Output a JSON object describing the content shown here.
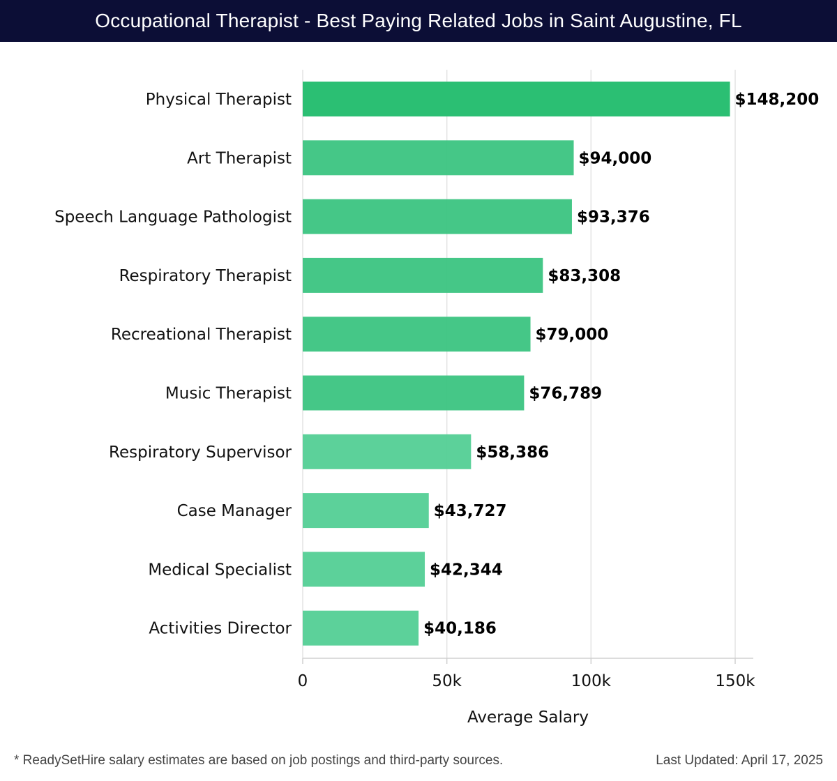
{
  "header": {
    "title": "Occupational Therapist - Best Paying Related Jobs in Saint Augustine, FL"
  },
  "chart_data": {
    "type": "bar",
    "orientation": "horizontal",
    "title": "Occupational Therapist - Best Paying Related Jobs in Saint Augustine, FL",
    "xlabel": "Average Salary",
    "ylabel": "",
    "xlim": [
      0,
      155000
    ],
    "grid": true,
    "categories": [
      "Physical Therapist",
      "Art Therapist",
      "Speech Language Pathologist",
      "Respiratory Therapist",
      "Recreational Therapist",
      "Music Therapist",
      "Respiratory Supervisor",
      "Case Manager",
      "Medical Specialist",
      "Activities Director"
    ],
    "values": [
      148200,
      94000,
      93376,
      83308,
      79000,
      76789,
      58386,
      43727,
      42344,
      40186
    ],
    "value_labels": [
      "$148,200",
      "$94,000",
      "$93,376",
      "$83,308",
      "$79,000",
      "$76,789",
      "$58,386",
      "$43,727",
      "$42,344",
      "$40,186"
    ],
    "ticks": [
      0,
      50000,
      100000,
      150000
    ],
    "tick_labels": [
      "0",
      "50k",
      "100k",
      "150k"
    ],
    "colors": {
      "top_bar": "#2bbf73",
      "bar_dark": "#3fc583",
      "bar_light": "#57cf97",
      "grid": "#e3e3e3",
      "axis": "#d0d0d0"
    }
  },
  "footer": {
    "note": "* ReadySetHire salary estimates are based on job postings and third-party sources.",
    "updated": "Last Updated: April 17, 2025"
  }
}
